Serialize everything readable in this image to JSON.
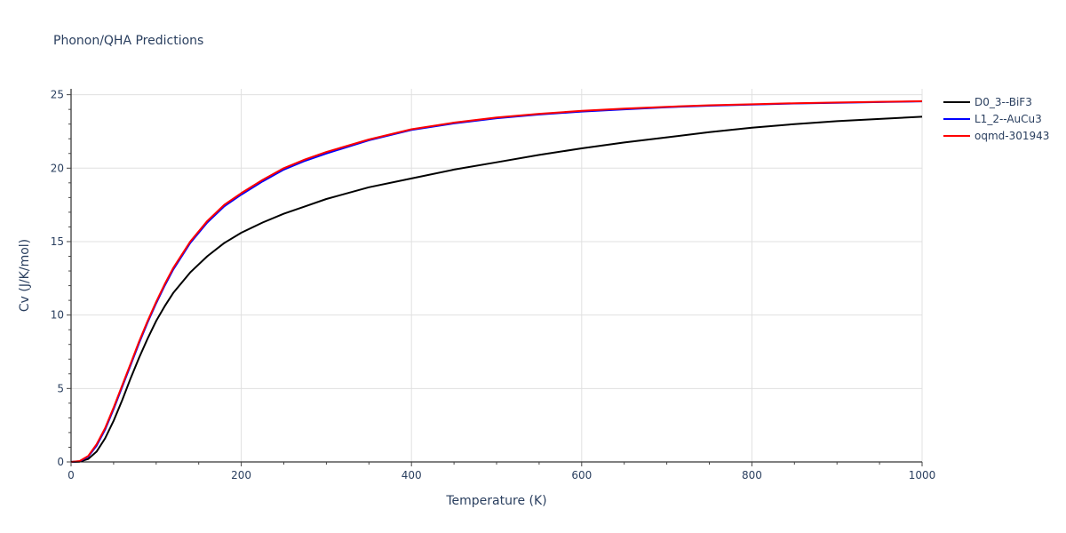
{
  "chart_data": {
    "type": "line",
    "title": "Phonon/QHA Predictions",
    "xlabel": "Temperature (K)",
    "ylabel": "Cv (J/K/mol)",
    "xlim": [
      0,
      1000
    ],
    "ylim": [
      0,
      25.4
    ],
    "x_ticks": [
      0,
      200,
      400,
      600,
      800,
      1000
    ],
    "y_ticks": [
      0,
      5,
      10,
      15,
      20,
      25
    ],
    "grid": true,
    "legend_position": "top-right",
    "series": [
      {
        "name": "D0_3--BiF3",
        "color": "#000000",
        "x": [
          0,
          10,
          20,
          30,
          40,
          50,
          60,
          70,
          80,
          90,
          100,
          110,
          120,
          140,
          160,
          180,
          200,
          225,
          250,
          275,
          300,
          350,
          400,
          450,
          500,
          550,
          600,
          650,
          700,
          750,
          800,
          850,
          900,
          950,
          1000
        ],
        "y": [
          0,
          0.02,
          0.2,
          0.7,
          1.6,
          2.8,
          4.2,
          5.7,
          7.1,
          8.4,
          9.6,
          10.6,
          11.5,
          12.9,
          14.0,
          14.9,
          15.6,
          16.3,
          16.9,
          17.4,
          17.9,
          18.7,
          19.3,
          19.9,
          20.4,
          20.9,
          21.35,
          21.75,
          22.1,
          22.45,
          22.75,
          23.0,
          23.2,
          23.35,
          23.5
        ]
      },
      {
        "name": "L1_2--AuCu3",
        "color": "#0000ff",
        "x": [
          0,
          10,
          20,
          30,
          40,
          50,
          60,
          70,
          80,
          90,
          100,
          110,
          120,
          140,
          160,
          180,
          200,
          225,
          250,
          275,
          300,
          350,
          400,
          450,
          500,
          550,
          600,
          650,
          700,
          750,
          800,
          850,
          900,
          950,
          1000
        ],
        "y": [
          0,
          0.05,
          0.35,
          1.1,
          2.2,
          3.6,
          5.1,
          6.6,
          8.1,
          9.5,
          10.8,
          12.0,
          13.1,
          14.9,
          16.3,
          17.4,
          18.2,
          19.1,
          19.9,
          20.5,
          21.0,
          21.9,
          22.6,
          23.05,
          23.4,
          23.65,
          23.85,
          24.0,
          24.15,
          24.25,
          24.33,
          24.4,
          24.45,
          24.5,
          24.55
        ]
      },
      {
        "name": "oqmd-301943",
        "color": "#ff0000",
        "x": [
          0,
          10,
          20,
          30,
          40,
          50,
          60,
          70,
          80,
          90,
          100,
          110,
          120,
          140,
          160,
          180,
          200,
          225,
          250,
          275,
          300,
          350,
          400,
          450,
          500,
          550,
          600,
          650,
          700,
          750,
          800,
          850,
          900,
          950,
          1000
        ],
        "y": [
          0,
          0.06,
          0.4,
          1.2,
          2.3,
          3.7,
          5.2,
          6.7,
          8.2,
          9.6,
          10.9,
          12.1,
          13.2,
          15.0,
          16.4,
          17.5,
          18.3,
          19.2,
          20.0,
          20.6,
          21.1,
          21.95,
          22.65,
          23.1,
          23.45,
          23.7,
          23.9,
          24.05,
          24.18,
          24.28,
          24.35,
          24.42,
          24.47,
          24.52,
          24.56
        ]
      }
    ]
  }
}
